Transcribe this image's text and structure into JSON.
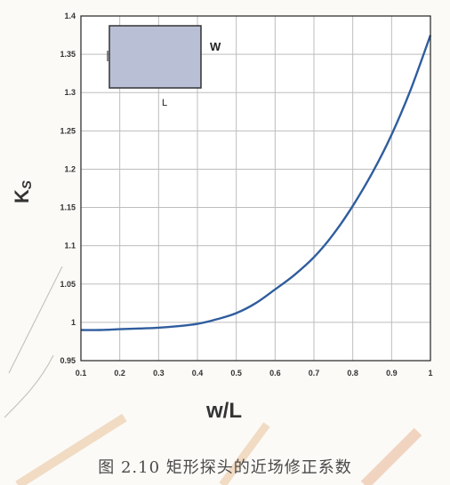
{
  "chart_data": {
    "type": "line",
    "xlabel": "w/L",
    "ylabel_main": "K",
    "ylabel_sub": "S",
    "xlim": [
      0.1,
      1.0
    ],
    "ylim": [
      0.95,
      1.4
    ],
    "x_ticks": [
      "0.1",
      "0.2",
      "0.3",
      "0.4",
      "0.5",
      "0.6",
      "0.7",
      "0.8",
      "0.9",
      "1"
    ],
    "y_ticks": [
      "0.95",
      "1",
      "1.05",
      "1.1",
      "1.15",
      "1.2",
      "1.25",
      "1.3",
      "1.35",
      "1.4"
    ],
    "series": [
      {
        "color": "#2f5d9e",
        "x": [
          0.1,
          0.15,
          0.2,
          0.25,
          0.3,
          0.35,
          0.4,
          0.45,
          0.5,
          0.55,
          0.6,
          0.65,
          0.7,
          0.75,
          0.8,
          0.85,
          0.9,
          0.95,
          1.0
        ],
        "y": [
          0.99,
          0.99,
          0.991,
          0.992,
          0.993,
          0.995,
          0.998,
          1.004,
          1.012,
          1.025,
          1.043,
          1.062,
          1.085,
          1.115,
          1.152,
          1.195,
          1.245,
          1.305,
          1.375
        ]
      }
    ],
    "grid": true
  },
  "inset": {
    "width_label": "W",
    "length_label": "L",
    "fill": "#b9c0d6"
  },
  "caption": "图 2.10  矩形探头的近场修正系数"
}
